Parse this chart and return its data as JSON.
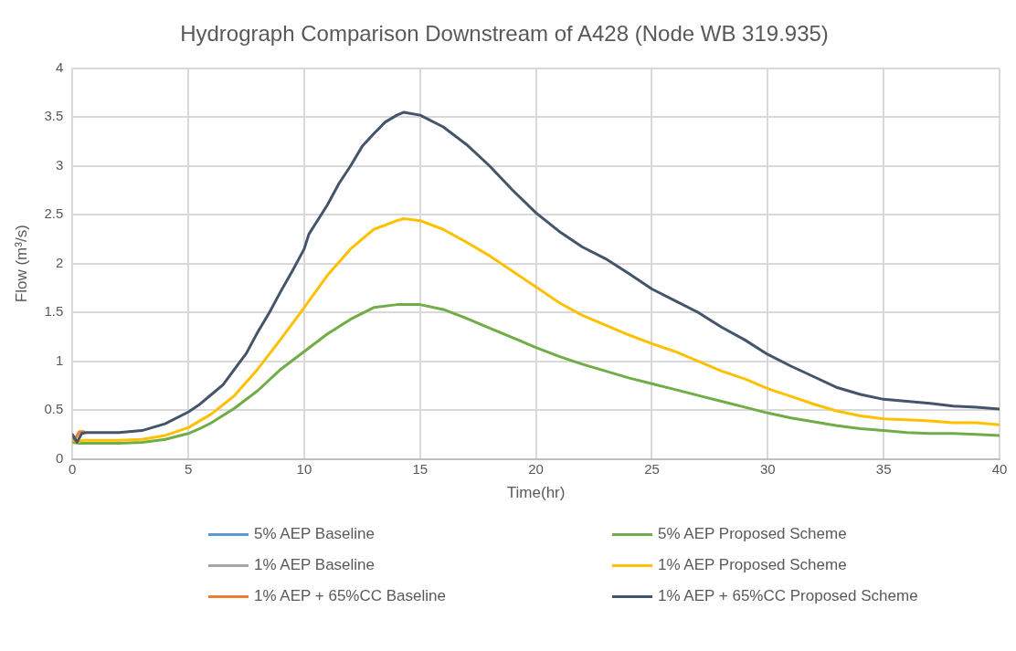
{
  "chart_data": {
    "type": "line",
    "title": "Hydrograph Comparison Downstream of A428 (Node WB 319.935)",
    "xlabel": "Time(hr)",
    "ylabel": "Flow (m³/s)",
    "xlim": [
      0,
      40
    ],
    "xticks": [
      0,
      5,
      10,
      15,
      20,
      25,
      30,
      35,
      40
    ],
    "ylim": [
      0,
      4
    ],
    "yticks": [
      0,
      0.5,
      1,
      1.5,
      2,
      2.5,
      3,
      3.5,
      4
    ],
    "grid": true,
    "legend": "bottom",
    "marker": "none",
    "line_style": "solid",
    "series": [
      {
        "name": "5% AEP Baseline",
        "color": "#5b9bd5"
      },
      {
        "name": "5% AEP Proposed Scheme",
        "color": "#70ad47",
        "x": [
          0,
          0.3,
          2,
          3,
          4,
          5,
          5.5,
          6,
          7,
          8,
          9,
          10,
          11,
          12,
          13,
          14,
          15,
          16,
          17,
          18,
          19,
          20,
          21,
          22,
          23,
          24,
          25,
          26,
          27,
          28,
          29,
          30,
          31,
          32,
          33,
          34,
          35,
          36,
          37,
          38,
          39,
          40
        ],
        "values": [
          0.17,
          0.16,
          0.16,
          0.17,
          0.2,
          0.26,
          0.31,
          0.37,
          0.52,
          0.7,
          0.92,
          1.1,
          1.28,
          1.43,
          1.55,
          1.58,
          1.58,
          1.53,
          1.44,
          1.34,
          1.24,
          1.14,
          1.05,
          0.97,
          0.9,
          0.83,
          0.77,
          0.71,
          0.65,
          0.59,
          0.53,
          0.47,
          0.42,
          0.38,
          0.34,
          0.31,
          0.29,
          0.27,
          0.26,
          0.26,
          0.25,
          0.24
        ]
      },
      {
        "name": "1% AEP Baseline",
        "color": "#a5a5a5"
      },
      {
        "name": "1% AEP Proposed Scheme",
        "color": "#ffc000",
        "x": [
          0,
          0.2,
          0.4,
          2,
          3,
          4,
          5,
          5.5,
          6,
          7,
          8,
          9,
          10,
          11,
          12,
          12.5,
          13,
          14,
          14.3,
          15,
          16,
          17,
          18,
          19,
          20,
          21,
          22,
          23,
          24,
          25,
          26,
          27,
          28,
          29,
          30,
          31,
          32,
          33,
          34,
          35,
          36,
          37,
          38,
          39,
          40
        ],
        "values": [
          0.2,
          0.17,
          0.19,
          0.19,
          0.2,
          0.24,
          0.32,
          0.39,
          0.46,
          0.65,
          0.92,
          1.23,
          1.55,
          1.88,
          2.15,
          2.25,
          2.35,
          2.44,
          2.46,
          2.44,
          2.35,
          2.22,
          2.08,
          1.92,
          1.76,
          1.6,
          1.47,
          1.37,
          1.27,
          1.18,
          1.1,
          1.0,
          0.9,
          0.82,
          0.72,
          0.64,
          0.56,
          0.49,
          0.44,
          0.41,
          0.4,
          0.39,
          0.37,
          0.37,
          0.35
        ]
      },
      {
        "name": "1% AEP + 65%CC Baseline",
        "color": "#ed7d31",
        "x": [
          0,
          0.1,
          0.3,
          0.5
        ],
        "values": [
          0.21,
          0.2,
          0.28,
          0.28
        ]
      },
      {
        "name": "1% AEP + 65%CC Proposed Scheme",
        "color": "#44546a",
        "x": [
          0,
          0.2,
          0.4,
          0.6,
          2,
          3,
          4,
          5,
          5.5,
          6,
          6.5,
          7,
          7.5,
          8,
          8.5,
          9,
          9.5,
          10,
          10.2,
          11,
          11.5,
          12,
          12.5,
          13,
          13.5,
          14,
          14.3,
          15,
          16,
          17,
          18,
          19,
          20,
          21,
          22,
          23,
          24,
          25,
          26,
          27,
          28,
          29,
          30,
          31,
          32,
          33,
          34,
          35,
          36,
          37,
          38,
          39,
          40
        ],
        "values": [
          0.25,
          0.17,
          0.26,
          0.27,
          0.27,
          0.29,
          0.36,
          0.48,
          0.56,
          0.66,
          0.76,
          0.92,
          1.08,
          1.3,
          1.5,
          1.72,
          1.93,
          2.15,
          2.3,
          2.6,
          2.82,
          3.0,
          3.2,
          3.33,
          3.45,
          3.52,
          3.55,
          3.52,
          3.4,
          3.22,
          3.0,
          2.75,
          2.52,
          2.33,
          2.17,
          2.05,
          1.9,
          1.74,
          1.62,
          1.5,
          1.35,
          1.22,
          1.07,
          0.95,
          0.84,
          0.73,
          0.66,
          0.61,
          0.59,
          0.57,
          0.54,
          0.53,
          0.51
        ]
      }
    ]
  }
}
